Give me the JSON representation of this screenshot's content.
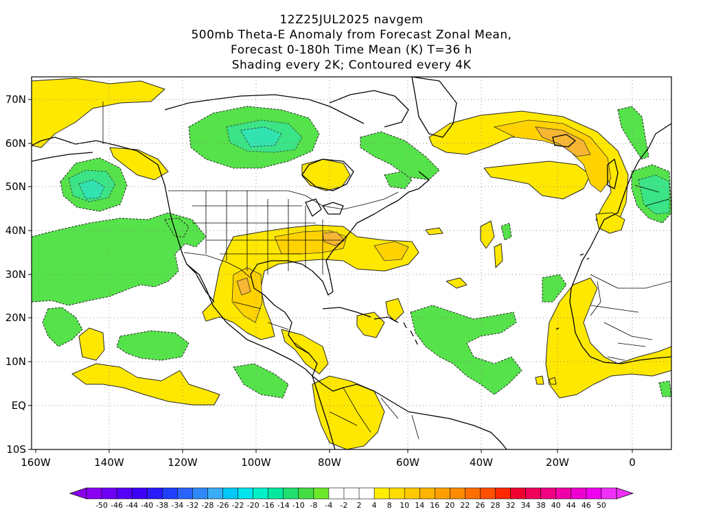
{
  "title": {
    "line1": "12Z25JUL2025 navgem",
    "line2": "500mb Theta-E Anomaly from Forecast Zonal Mean,",
    "line3": "Forecast 0-180h Time Mean (K) T=36 h",
    "line4": "Shading every 2K; Contoured every 4K"
  },
  "axes": {
    "lon_labels": [
      "160W",
      "140W",
      "120W",
      "100W",
      "80W",
      "60W",
      "40W",
      "20W",
      "0"
    ],
    "lat_labels": [
      "70N",
      "60N",
      "50N",
      "40N",
      "30N",
      "20N",
      "10N",
      "EQ",
      "10S"
    ]
  },
  "colorbar": {
    "labels": [
      "-50",
      "-46",
      "-44",
      "-40",
      "-38",
      "-34",
      "-32",
      "-28",
      "-26",
      "-22",
      "-20",
      "-16",
      "-14",
      "-10",
      "-8",
      "-4",
      "-2",
      "2",
      "4",
      "8",
      "10",
      "14",
      "16",
      "20",
      "22",
      "26",
      "28",
      "32",
      "34",
      "38",
      "40",
      "44",
      "46",
      "50"
    ],
    "colors": [
      "#8a00f0",
      "#6e00f5",
      "#5500f8",
      "#3c00fa",
      "#2a1afc",
      "#1f3ffc",
      "#2a64fa",
      "#2f8af8",
      "#3aacf6",
      "#00c8f8",
      "#00e4ee",
      "#00f0c8",
      "#00e8a0",
      "#22e070",
      "#44dd44",
      "#6ee82a",
      "#ffffff",
      "#ffffff",
      "#ffffff",
      "#ffee00",
      "#ffdd00",
      "#ffc800",
      "#ffb400",
      "#ffa000",
      "#ff8c00",
      "#ff6e00",
      "#ff5000",
      "#ff2800",
      "#f00030",
      "#f0005a",
      "#f00080",
      "#f000a8",
      "#f000d0",
      "#f000f0",
      "#f030f8"
    ],
    "left_arrow_color": "#8a00f0",
    "right_arrow_color": "#f030f8"
  },
  "shading_colors": {
    "green_light": "#55e24a",
    "green_mid": "#3be486",
    "green_strong": "#31e3b0",
    "yellow": "#ffe800",
    "yellow_orange": "#ffd200",
    "orange": "#f7b633"
  }
}
